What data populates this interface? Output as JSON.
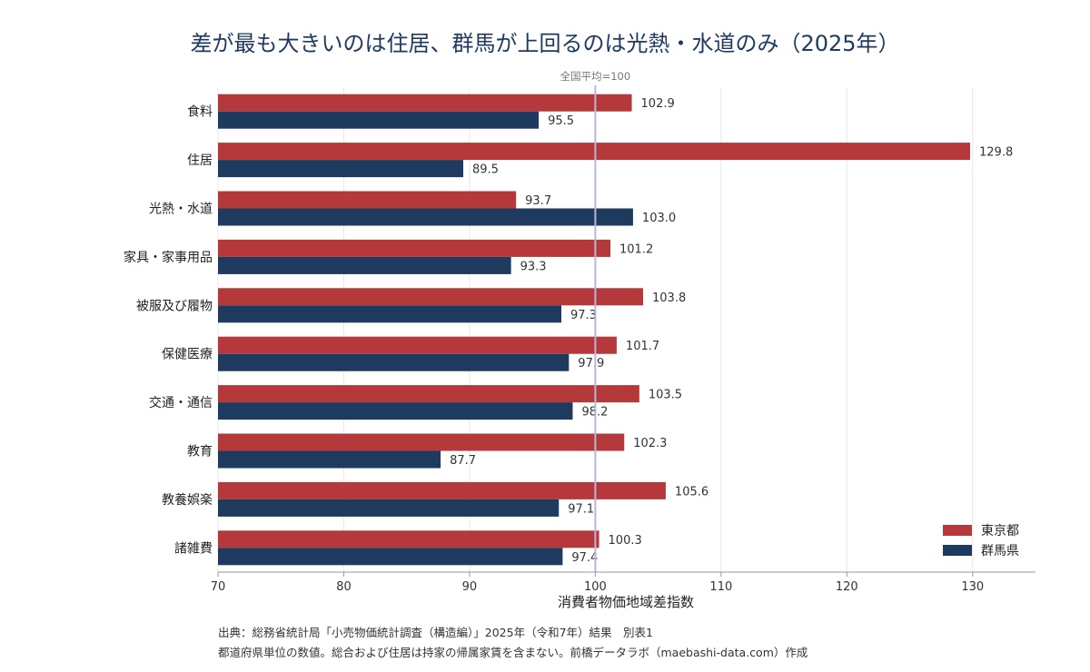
{
  "chart_data": {
    "type": "bar",
    "orientation": "horizontal",
    "title": "差が最も大きいのは住居、群馬が上回るのは光熱・水道のみ（2025年）",
    "categories": [
      "食料",
      "住居",
      "光熱・水道",
      "家具・家事用品",
      "被服及び履物",
      "保健医療",
      "交通・通信",
      "教育",
      "教養娯楽",
      "諸雑費"
    ],
    "series": [
      {
        "name": "東京都",
        "color": "#b5393b",
        "values": [
          102.9,
          129.8,
          93.7,
          101.2,
          103.8,
          101.7,
          103.5,
          102.3,
          105.6,
          100.3
        ],
        "labels": [
          "102.9",
          "129.8",
          "93.7",
          "101.2",
          "103.8",
          "101.7",
          "103.5",
          "102.3",
          "105.6",
          "100.3"
        ]
      },
      {
        "name": "群馬県",
        "color": "#1e3a5f",
        "values": [
          95.5,
          89.5,
          103.0,
          93.3,
          97.3,
          97.9,
          98.2,
          87.7,
          97.1,
          97.4
        ],
        "labels": [
          "95.5",
          "89.5",
          "103.0",
          "93.3",
          "97.3",
          "97.9",
          "98.2",
          "87.7",
          "97.1",
          "97.4"
        ]
      }
    ],
    "xlim": [
      70,
      135
    ],
    "xticks": [
      70,
      80,
      90,
      100,
      110,
      120,
      130
    ],
    "xtick_labels": [
      "70",
      "80",
      "90",
      "100",
      "110",
      "120",
      "130"
    ],
    "xlabel": "消費者物価地域差指数",
    "reference_line": {
      "value": 100,
      "label": "全国平均=100",
      "color": "#b9b6d6"
    },
    "grid": "x",
    "legend_position": "bottom-right"
  },
  "footer": {
    "source": "出典：総務省統計局「小売物価統計調査（構造編）」2025年（令和7年）結果　別表1",
    "note": "都道府県単位の数値。総合および住居は持家の帰属家賃を含まない。前橋データラボ（maebashi-data.com）作成"
  }
}
